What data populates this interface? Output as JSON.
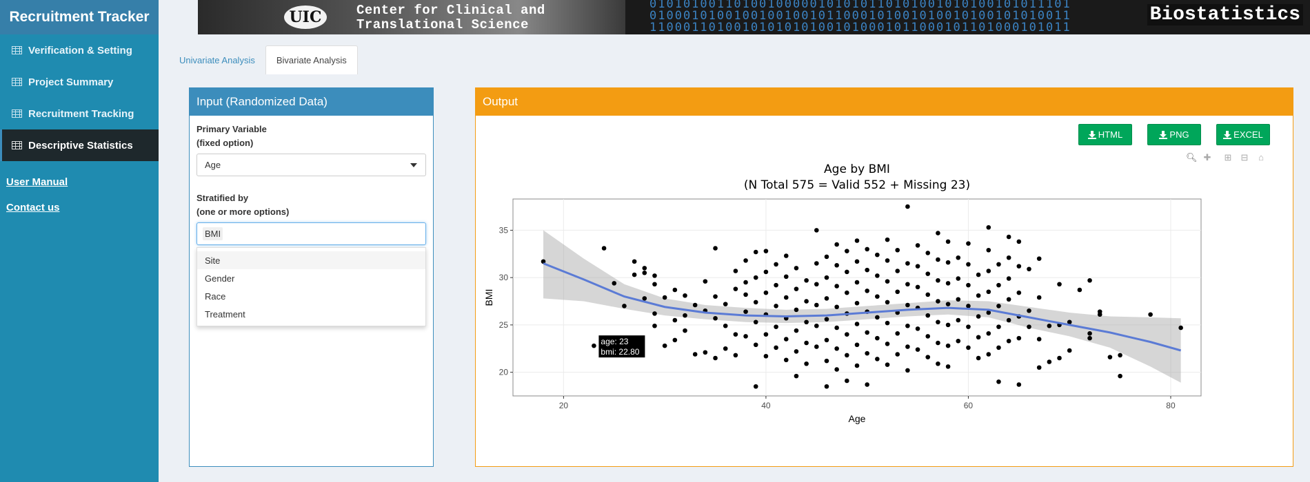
{
  "app": {
    "title": "Recruitment Tracker"
  },
  "banner": {
    "logo": "UIC",
    "line1": "Center for Clinical and",
    "line2": "Translational Science",
    "right": "Biostatistics"
  },
  "sidebar": {
    "items": [
      {
        "label": "Verification & Setting",
        "active": false
      },
      {
        "label": "Project Summary",
        "active": false
      },
      {
        "label": "Recruitment Tracking",
        "active": false
      },
      {
        "label": "Descriptive Statistics",
        "active": true
      }
    ],
    "links": [
      "User Manual",
      "Contact us"
    ]
  },
  "tabs": [
    {
      "label": "Univariate Analysis",
      "active": false
    },
    {
      "label": "Bivariate Analysis",
      "active": true
    }
  ],
  "input_panel": {
    "title": "Input (Randomized Data)",
    "primary_label_1": "Primary Variable",
    "primary_label_2": "(fixed option)",
    "primary_value": "Age",
    "stratified_label_1": "Stratified by",
    "stratified_label_2": "(one or more options)",
    "stratified_selected": "BMI",
    "options": [
      "Site",
      "Gender",
      "Race",
      "Treatment"
    ]
  },
  "output_panel": {
    "title": "Output",
    "buttons": [
      "HTML",
      "PNG",
      "EXCEL"
    ]
  },
  "chart_data": {
    "type": "scatter",
    "title": "Age by BMI",
    "subtitle": "(N Total 575 = Valid 552 + Missing 23)",
    "xlabel": "Age",
    "ylabel": "BMI",
    "xlim": [
      15,
      83
    ],
    "ylim": [
      17.5,
      38.3
    ],
    "xticks": [
      20,
      40,
      60,
      80
    ],
    "yticks": [
      20,
      25,
      30,
      35
    ],
    "grid": true,
    "tooltip": {
      "x": 23,
      "y": 22.8,
      "line1": "age: 23",
      "line2": "bmi: 22.80"
    },
    "smooth": {
      "x": [
        18,
        22,
        26,
        30,
        34,
        38,
        42,
        46,
        50,
        54,
        58,
        62,
        66,
        70,
        74,
        78,
        81
      ],
      "y": [
        31.5,
        29.8,
        28.0,
        26.9,
        26.3,
        26.0,
        25.9,
        26.0,
        26.3,
        26.6,
        26.8,
        26.6,
        25.8,
        25.0,
        24.2,
        23.2,
        22.3
      ],
      "upper": [
        35.0,
        32.0,
        29.3,
        27.8,
        27.1,
        26.8,
        26.6,
        26.7,
        27.0,
        27.3,
        27.6,
        27.5,
        26.9,
        26.3,
        25.9,
        25.8,
        25.7
      ],
      "lower": [
        27.8,
        27.5,
        26.7,
        26.0,
        25.6,
        25.3,
        25.2,
        25.3,
        25.6,
        25.9,
        26.1,
        25.8,
        24.7,
        23.8,
        22.6,
        20.6,
        18.9
      ]
    },
    "points": [
      [
        18,
        31.7
      ],
      [
        23,
        22.8
      ],
      [
        24,
        33.1
      ],
      [
        25,
        29.4
      ],
      [
        26,
        27
      ],
      [
        27,
        31.7
      ],
      [
        27,
        30.3
      ],
      [
        28,
        31
      ],
      [
        28,
        27.8
      ],
      [
        28,
        30.5
      ],
      [
        29,
        30.2
      ],
      [
        29,
        26.2
      ],
      [
        29,
        29.3
      ],
      [
        29,
        24.9
      ],
      [
        30,
        27.9
      ],
      [
        30,
        22.8
      ],
      [
        31,
        28.7
      ],
      [
        31,
        25.5
      ],
      [
        31,
        23.4
      ],
      [
        32,
        28.1
      ],
      [
        32,
        26
      ],
      [
        32,
        24.4
      ],
      [
        33,
        21.9
      ],
      [
        33,
        27.1
      ],
      [
        34,
        22.1
      ],
      [
        34,
        29.6
      ],
      [
        34,
        26.5
      ],
      [
        35,
        21.5
      ],
      [
        35,
        33.1
      ],
      [
        35,
        28
      ],
      [
        35,
        25.7
      ],
      [
        36,
        22.5
      ],
      [
        36,
        27.2
      ],
      [
        36,
        24.9
      ],
      [
        37,
        30.7
      ],
      [
        37,
        28.8
      ],
      [
        37,
        24
      ],
      [
        37,
        21.8
      ],
      [
        38,
        31.8
      ],
      [
        38,
        29.5
      ],
      [
        38,
        26.4
      ],
      [
        38,
        23.8
      ],
      [
        38,
        28.2
      ],
      [
        39,
        32.7
      ],
      [
        39,
        30
      ],
      [
        39,
        27.4
      ],
      [
        39,
        25.3
      ],
      [
        39,
        22.9
      ],
      [
        39,
        18.5
      ],
      [
        40,
        32.8
      ],
      [
        40,
        30.6
      ],
      [
        40,
        28.4
      ],
      [
        40,
        26.1
      ],
      [
        40,
        24
      ],
      [
        40,
        21.7
      ],
      [
        41,
        31.4
      ],
      [
        41,
        29.2
      ],
      [
        41,
        27
      ],
      [
        41,
        24.8
      ],
      [
        41,
        22.6
      ],
      [
        42,
        32.3
      ],
      [
        42,
        30.1
      ],
      [
        42,
        27.9
      ],
      [
        42,
        25.7
      ],
      [
        42,
        23.5
      ],
      [
        42,
        21.3
      ],
      [
        43,
        31
      ],
      [
        43,
        28.8
      ],
      [
        43,
        26.6
      ],
      [
        43,
        24.4
      ],
      [
        43,
        22.2
      ],
      [
        43,
        19.6
      ],
      [
        44,
        29.7
      ],
      [
        44,
        27.5
      ],
      [
        44,
        25.3
      ],
      [
        44,
        23.1
      ],
      [
        44,
        20.9
      ],
      [
        45,
        31.5
      ],
      [
        45,
        29.3
      ],
      [
        45,
        27.1
      ],
      [
        45,
        24.9
      ],
      [
        45,
        22.7
      ],
      [
        45,
        35
      ],
      [
        46,
        32.2
      ],
      [
        46,
        30
      ],
      [
        46,
        27.8
      ],
      [
        46,
        25.6
      ],
      [
        46,
        23.4
      ],
      [
        46,
        21.2
      ],
      [
        46,
        18.5
      ],
      [
        47,
        33.5
      ],
      [
        47,
        31.3
      ],
      [
        47,
        29.1
      ],
      [
        47,
        26.9
      ],
      [
        47,
        24.7
      ],
      [
        47,
        22.5
      ],
      [
        47,
        20.3
      ],
      [
        48,
        32.8
      ],
      [
        48,
        30.6
      ],
      [
        48,
        28.4
      ],
      [
        48,
        26.2
      ],
      [
        48,
        24
      ],
      [
        48,
        21.8
      ],
      [
        48,
        19.1
      ],
      [
        49,
        33.9
      ],
      [
        49,
        31.7
      ],
      [
        49,
        29.5
      ],
      [
        49,
        27.3
      ],
      [
        49,
        25.1
      ],
      [
        49,
        22.9
      ],
      [
        49,
        20.7
      ],
      [
        50,
        33
      ],
      [
        50,
        30.8
      ],
      [
        50,
        28.6
      ],
      [
        50,
        26.4
      ],
      [
        50,
        24.2
      ],
      [
        50,
        22
      ],
      [
        50,
        18.7
      ],
      [
        51,
        32.4
      ],
      [
        51,
        30.2
      ],
      [
        51,
        28
      ],
      [
        51,
        25.8
      ],
      [
        51,
        23.6
      ],
      [
        51,
        21.4
      ],
      [
        52,
        34
      ],
      [
        52,
        31.8
      ],
      [
        52,
        29.6
      ],
      [
        52,
        27.4
      ],
      [
        52,
        25.2
      ],
      [
        52,
        23
      ],
      [
        52,
        20.8
      ],
      [
        53,
        32.9
      ],
      [
        53,
        30.7
      ],
      [
        53,
        28.5
      ],
      [
        53,
        26.3
      ],
      [
        53,
        24.1
      ],
      [
        53,
        21.9
      ],
      [
        54,
        37.5
      ],
      [
        54,
        31.5
      ],
      [
        54,
        29.3
      ],
      [
        54,
        27.1
      ],
      [
        54,
        24.9
      ],
      [
        54,
        22.7
      ],
      [
        54,
        20.2
      ],
      [
        55,
        33.4
      ],
      [
        55,
        31.2
      ],
      [
        55,
        29
      ],
      [
        55,
        26.8
      ],
      [
        55,
        24.6
      ],
      [
        55,
        22.4
      ],
      [
        56,
        32.6
      ],
      [
        56,
        30.4
      ],
      [
        56,
        28.2
      ],
      [
        56,
        26
      ],
      [
        56,
        23.8
      ],
      [
        56,
        21.6
      ],
      [
        57,
        34.7
      ],
      [
        57,
        31.9
      ],
      [
        57,
        29.7
      ],
      [
        57,
        27.5
      ],
      [
        57,
        25.3
      ],
      [
        57,
        23.1
      ],
      [
        57,
        20.9
      ],
      [
        58,
        33.8
      ],
      [
        58,
        31.6
      ],
      [
        58,
        29.4
      ],
      [
        58,
        27.2
      ],
      [
        58,
        25
      ],
      [
        58,
        22.8
      ],
      [
        58,
        20.6
      ],
      [
        59,
        32.1
      ],
      [
        59,
        29.9
      ],
      [
        59,
        27.7
      ],
      [
        59,
        25.5
      ],
      [
        59,
        23.3
      ],
      [
        60,
        33.6
      ],
      [
        60,
        31.4
      ],
      [
        60,
        29.2
      ],
      [
        60,
        27
      ],
      [
        60,
        24.8
      ],
      [
        60,
        22.6
      ],
      [
        61,
        30.3
      ],
      [
        61,
        28.1
      ],
      [
        61,
        25.9
      ],
      [
        61,
        23.7
      ],
      [
        61,
        21.5
      ],
      [
        62,
        35.3
      ],
      [
        62,
        32.9
      ],
      [
        62,
        30.7
      ],
      [
        62,
        28.5
      ],
      [
        62,
        26.3
      ],
      [
        62,
        24.1
      ],
      [
        62,
        21.9
      ],
      [
        63,
        31.4
      ],
      [
        63,
        29.2
      ],
      [
        63,
        27
      ],
      [
        63,
        24.8
      ],
      [
        63,
        22.6
      ],
      [
        63,
        19
      ],
      [
        64,
        34.3
      ],
      [
        64,
        32.1
      ],
      [
        64,
        29.9
      ],
      [
        64,
        27.7
      ],
      [
        64,
        25.5
      ],
      [
        64,
        23.3
      ],
      [
        65,
        33.8
      ],
      [
        65,
        31.2
      ],
      [
        65,
        28.4
      ],
      [
        65,
        25.9
      ],
      [
        65,
        23.6
      ],
      [
        65,
        18.7
      ],
      [
        66,
        30.9
      ],
      [
        66,
        26.5
      ],
      [
        66,
        24.8
      ],
      [
        67,
        32
      ],
      [
        67,
        27.9
      ],
      [
        67,
        23.5
      ],
      [
        67,
        20.5
      ],
      [
        68,
        24.9
      ],
      [
        68,
        21.1
      ],
      [
        69,
        29.3
      ],
      [
        69,
        25
      ],
      [
        69,
        21.5
      ],
      [
        70,
        25.3
      ],
      [
        70,
        22.3
      ],
      [
        71,
        28.7
      ],
      [
        72,
        29.7
      ],
      [
        72,
        24.1
      ],
      [
        72,
        23.6
      ],
      [
        73,
        26.4
      ],
      [
        73,
        26.1
      ],
      [
        74,
        21.6
      ],
      [
        75,
        21.8
      ],
      [
        75,
        19.6
      ],
      [
        78,
        26.1
      ],
      [
        81,
        24.7
      ]
    ]
  }
}
